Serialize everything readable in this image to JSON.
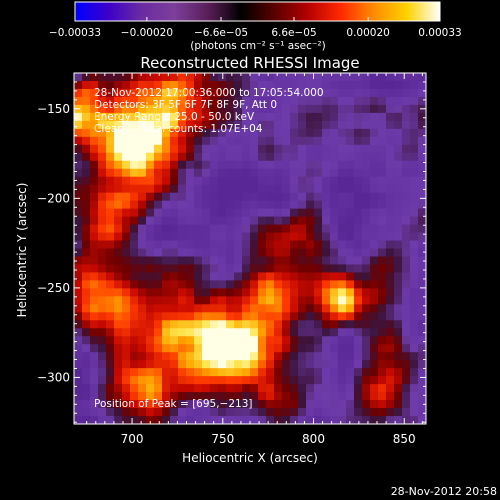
{
  "chart_data": {
    "type": "heatmap",
    "title": "Reconstructed RHESSI Image",
    "xlabel": "Heliocentric X (arcsec)",
    "ylabel": "Heliocentric Y (arcsec)",
    "xlim": [
      668,
      862
    ],
    "ylim": [
      -326,
      -130
    ],
    "x_ticks": [
      {
        "value": 700,
        "label": "700"
      },
      {
        "value": 750,
        "label": "750"
      },
      {
        "value": 800,
        "label": "800"
      },
      {
        "value": 850,
        "label": "850"
      }
    ],
    "y_ticks": [
      {
        "value": -150,
        "label": "−150"
      },
      {
        "value": -200,
        "label": "−200"
      },
      {
        "value": -250,
        "label": "−250"
      },
      {
        "value": -300,
        "label": "−300"
      }
    ],
    "colorbar": {
      "min": -0.00033,
      "max": 0.00033,
      "ticks": [
        {
          "value": -0.00033,
          "label": "−0.00033"
        },
        {
          "value": -0.0002,
          "label": "−0.00020"
        },
        {
          "value": -6.6e-05,
          "label": "−6.6e−05"
        },
        {
          "value": 6.6e-05,
          "label": "6.6e−05"
        },
        {
          "value": 0.0002,
          "label": "0.00020"
        },
        {
          "value": 0.00033,
          "label": "0.00033"
        }
      ],
      "unit_label": "(photons cm⁻² s⁻¹ asec⁻²)",
      "colors": [
        "#0000ff",
        "#3c00c8",
        "#6a2ca0",
        "#7d3e9c",
        "#5a1f5a",
        "#000000",
        "#5a0000",
        "#b40000",
        "#ff2800",
        "#ff8c00",
        "#ffd200",
        "#ffffff"
      ]
    },
    "annotations": [
      "28-Nov-2012 17:00:36.000 to 17:05:54.000",
      "Detectors: 3F 5F 6F 7F 8F 9F, Att 0",
      "Energy Range: 25.0 - 50.0 keV",
      "Clean     Total counts: 1.07E+04"
    ],
    "peak_label": "Position of Peak = [695,−213]",
    "grid": false
  },
  "footer": {
    "timestamp": "28-Nov-2012 20:58"
  }
}
